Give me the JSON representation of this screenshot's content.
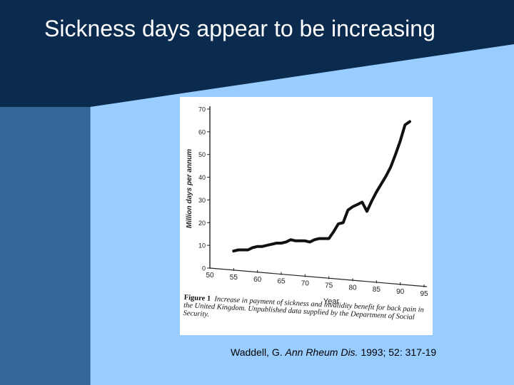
{
  "slide": {
    "title": "Sickness days appear to be increasing",
    "colors": {
      "dark_navy": "#0a2a4e",
      "mid_blue": "#336699",
      "light_blue": "#99ccff"
    }
  },
  "figure": {
    "caption_label": "Figure 1",
    "caption_text": "Increase in payment of sickness and invalidity benefit for back pain in the United Kingdom. Unpublished data supplied by the Department of Social Security."
  },
  "citation": {
    "author": "Waddell, G.",
    "journal": "Ann Rheum Dis.",
    "details": "1993; 52: 317-19"
  },
  "chart_data": {
    "type": "line",
    "title": "",
    "xlabel": "Year",
    "ylabel": "Million days per annum",
    "xlim": [
      50,
      95
    ],
    "ylim": [
      0,
      70
    ],
    "x_ticks": [
      50,
      55,
      60,
      65,
      70,
      75,
      80,
      85,
      90,
      95
    ],
    "y_ticks": [
      0,
      10,
      20,
      30,
      40,
      50,
      60,
      70
    ],
    "grid": false,
    "legend": "none",
    "series": [
      {
        "x": [
          55,
          56,
          57,
          58,
          59,
          60,
          61,
          62,
          63,
          64,
          65,
          66,
          67,
          68,
          69,
          70,
          71,
          72,
          73,
          74,
          75,
          76,
          77,
          78,
          79,
          80,
          81,
          82,
          83,
          84,
          85,
          86,
          87,
          88,
          89,
          90,
          91,
          92
        ],
        "values": [
          7.5,
          8,
          8,
          8,
          9,
          9.5,
          9.5,
          10,
          10.5,
          11,
          11,
          11.5,
          12.5,
          12,
          12,
          12,
          11.5,
          12.5,
          13,
          13,
          13,
          16,
          19.5,
          20,
          25.5,
          27,
          28,
          29,
          25,
          29.5,
          33.5,
          37,
          40.5,
          44.5,
          50,
          56,
          63,
          64.5
        ]
      }
    ]
  }
}
